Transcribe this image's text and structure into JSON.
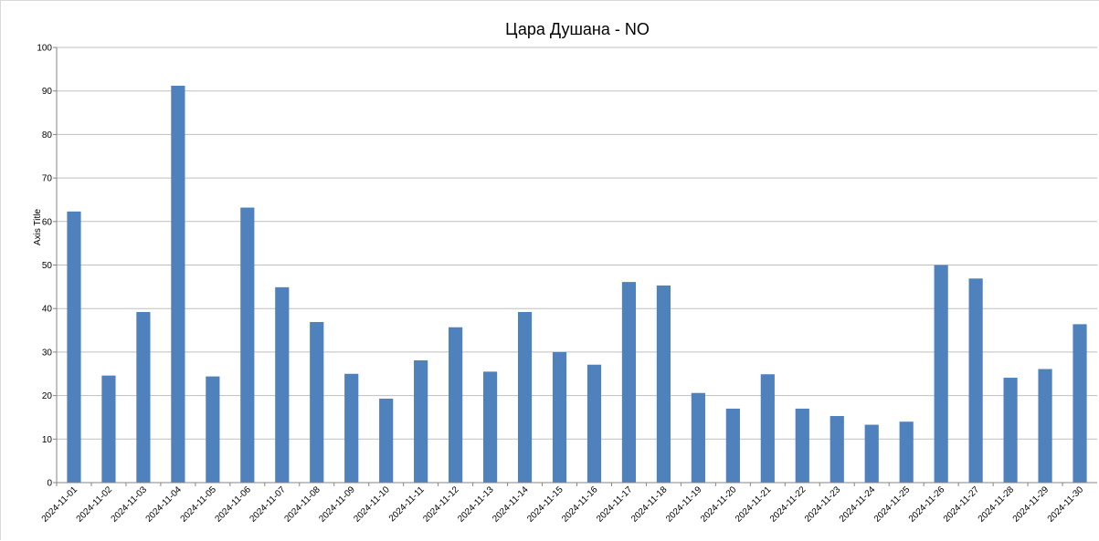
{
  "chart_data": {
    "type": "bar",
    "title": "Цара Душана - NO",
    "xlabel": "",
    "ylabel": "Axis Title",
    "ylim": [
      0,
      100
    ],
    "yticks": [
      0,
      10,
      20,
      30,
      40,
      50,
      60,
      70,
      80,
      90,
      100
    ],
    "grid": true,
    "legend": "none",
    "bar_color": "#4f81bd",
    "categories": [
      "2024-11-01",
      "2024-11-02",
      "2024-11-03",
      "2024-11-04",
      "2024-11-05",
      "2024-11-06",
      "2024-11-07",
      "2024-11-08",
      "2024-11-09",
      "2024-11-10",
      "2024-11-11",
      "2024-11-12",
      "2024-11-13",
      "2024-11-14",
      "2024-11-15",
      "2024-11-16",
      "2024-11-17",
      "2024-11-18",
      "2024-11-19",
      "2024-11-20",
      "2024-11-21",
      "2024-11-22",
      "2024-11-23",
      "2024-11-24",
      "2024-11-25",
      "2024-11-26",
      "2024-11-27",
      "2024-11-28",
      "2024-11-29",
      "2024-11-30"
    ],
    "values": [
      62.3,
      24.6,
      39.2,
      91.2,
      24.4,
      63.2,
      44.9,
      36.9,
      25.0,
      19.3,
      28.1,
      35.7,
      25.5,
      39.2,
      30.0,
      27.1,
      46.1,
      45.3,
      20.6,
      17.0,
      24.9,
      17.0,
      15.3,
      13.3,
      14.0,
      50.0,
      46.9,
      24.1,
      26.1,
      36.4
    ]
  }
}
